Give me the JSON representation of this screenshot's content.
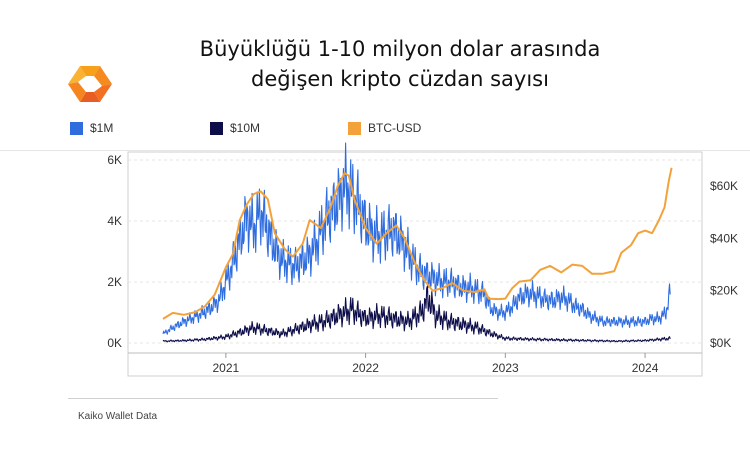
{
  "title": {
    "line1": "Büyüklüğü 1-10 milyon dolar arasında",
    "line2": "değişen kripto cüzdan sayısı"
  },
  "legend": {
    "items": [
      {
        "label": "$1M",
        "color": "#2f6ddf"
      },
      {
        "label": "$10M",
        "color": "#0d0d4a"
      },
      {
        "label": "BTC-USD",
        "color": "#f3a23a"
      }
    ]
  },
  "footer": {
    "source": "Kaiko Wallet Data"
  },
  "chart_data": {
    "type": "line",
    "x_range": [
      2020.5,
      2024.25
    ],
    "y_left": {
      "range": [
        0,
        6000
      ],
      "ticks": [
        0,
        2000,
        4000,
        6000
      ],
      "tick_labels": [
        "0K",
        "2K",
        "4K",
        "6K"
      ]
    },
    "y_right": {
      "range": [
        0,
        70000
      ],
      "ticks": [
        0,
        20000,
        40000,
        60000
      ],
      "tick_labels": [
        "$0K",
        "$20K",
        "$40K",
        "$60K"
      ]
    },
    "x_ticks": [
      2021,
      2022,
      2023,
      2024
    ],
    "x_tick_labels": [
      "2021",
      "2022",
      "2023",
      "2024"
    ],
    "grid": true,
    "series": [
      {
        "name": "$1M",
        "axis": "left",
        "color": "#2f6ddf",
        "points": [
          [
            2020.55,
            300
          ],
          [
            2020.62,
            500
          ],
          [
            2020.7,
            700
          ],
          [
            2020.8,
            900
          ],
          [
            2020.88,
            1100
          ],
          [
            2020.95,
            1400
          ],
          [
            2021.0,
            2000
          ],
          [
            2021.05,
            2600
          ],
          [
            2021.1,
            3400
          ],
          [
            2021.15,
            4100
          ],
          [
            2021.2,
            3800
          ],
          [
            2021.25,
            4300
          ],
          [
            2021.3,
            3700
          ],
          [
            2021.35,
            3100
          ],
          [
            2021.4,
            2700
          ],
          [
            2021.45,
            2600
          ],
          [
            2021.5,
            2500
          ],
          [
            2021.55,
            2700
          ],
          [
            2021.6,
            2900
          ],
          [
            2021.65,
            3300
          ],
          [
            2021.7,
            3900
          ],
          [
            2021.75,
            4300
          ],
          [
            2021.8,
            4600
          ],
          [
            2021.85,
            5200
          ],
          [
            2021.9,
            4900
          ],
          [
            2021.95,
            4500
          ],
          [
            2022.0,
            3900
          ],
          [
            2022.05,
            3600
          ],
          [
            2022.1,
            3500
          ],
          [
            2022.15,
            3600
          ],
          [
            2022.2,
            3700
          ],
          [
            2022.25,
            3400
          ],
          [
            2022.3,
            3000
          ],
          [
            2022.35,
            2600
          ],
          [
            2022.4,
            2300
          ],
          [
            2022.45,
            2200
          ],
          [
            2022.5,
            2100
          ],
          [
            2022.55,
            2000
          ],
          [
            2022.6,
            2000
          ],
          [
            2022.65,
            1900
          ],
          [
            2022.7,
            1800
          ],
          [
            2022.75,
            1800
          ],
          [
            2022.8,
            1700
          ],
          [
            2022.85,
            1600
          ],
          [
            2022.9,
            1100
          ],
          [
            2022.95,
            1000
          ],
          [
            2023.0,
            1000
          ],
          [
            2023.05,
            1200
          ],
          [
            2023.1,
            1500
          ],
          [
            2023.15,
            1600
          ],
          [
            2023.2,
            1600
          ],
          [
            2023.25,
            1500
          ],
          [
            2023.3,
            1400
          ],
          [
            2023.35,
            1400
          ],
          [
            2023.4,
            1500
          ],
          [
            2023.45,
            1400
          ],
          [
            2023.5,
            1200
          ],
          [
            2023.55,
            1100
          ],
          [
            2023.6,
            900
          ],
          [
            2023.65,
            800
          ],
          [
            2023.7,
            700
          ],
          [
            2023.75,
            700
          ],
          [
            2023.8,
            700
          ],
          [
            2023.85,
            700
          ],
          [
            2023.9,
            700
          ],
          [
            2023.95,
            700
          ],
          [
            2024.0,
            700
          ],
          [
            2024.05,
            800
          ],
          [
            2024.1,
            800
          ],
          [
            2024.15,
            1000
          ],
          [
            2024.18,
            1700
          ]
        ]
      },
      {
        "name": "$10M",
        "axis": "left",
        "color": "#0d0d4a",
        "points": [
          [
            2020.55,
            60
          ],
          [
            2020.7,
            80
          ],
          [
            2020.85,
            120
          ],
          [
            2021.0,
            200
          ],
          [
            2021.1,
            350
          ],
          [
            2021.2,
            500
          ],
          [
            2021.3,
            400
          ],
          [
            2021.4,
            300
          ],
          [
            2021.5,
            450
          ],
          [
            2021.6,
            600
          ],
          [
            2021.7,
            700
          ],
          [
            2021.8,
            900
          ],
          [
            2021.9,
            1100
          ],
          [
            2022.0,
            800
          ],
          [
            2022.1,
            900
          ],
          [
            2022.2,
            800
          ],
          [
            2022.3,
            700
          ],
          [
            2022.4,
            1000
          ],
          [
            2022.45,
            1500
          ],
          [
            2022.5,
            900
          ],
          [
            2022.6,
            700
          ],
          [
            2022.7,
            600
          ],
          [
            2022.8,
            500
          ],
          [
            2022.9,
            300
          ],
          [
            2023.0,
            150
          ],
          [
            2023.2,
            120
          ],
          [
            2023.4,
            100
          ],
          [
            2023.6,
            80
          ],
          [
            2023.8,
            60
          ],
          [
            2024.0,
            80
          ],
          [
            2024.18,
            150
          ]
        ]
      },
      {
        "name": "BTC-USD",
        "axis": "right",
        "color": "#f3a23a",
        "points": [
          [
            2020.55,
            9200
          ],
          [
            2020.62,
            11500
          ],
          [
            2020.7,
            10800
          ],
          [
            2020.78,
            11800
          ],
          [
            2020.85,
            14000
          ],
          [
            2020.92,
            18500
          ],
          [
            2021.0,
            29000
          ],
          [
            2021.05,
            34000
          ],
          [
            2021.1,
            47000
          ],
          [
            2021.15,
            53000
          ],
          [
            2021.2,
            57000
          ],
          [
            2021.25,
            58000
          ],
          [
            2021.3,
            55000
          ],
          [
            2021.35,
            42000
          ],
          [
            2021.42,
            36000
          ],
          [
            2021.48,
            33000
          ],
          [
            2021.55,
            38000
          ],
          [
            2021.6,
            47000
          ],
          [
            2021.68,
            44000
          ],
          [
            2021.75,
            52000
          ],
          [
            2021.8,
            60000
          ],
          [
            2021.85,
            65000
          ],
          [
            2021.88,
            64000
          ],
          [
            2021.92,
            55000
          ],
          [
            2022.0,
            44000
          ],
          [
            2022.08,
            38000
          ],
          [
            2022.15,
            42000
          ],
          [
            2022.22,
            45000
          ],
          [
            2022.28,
            40000
          ],
          [
            2022.35,
            31000
          ],
          [
            2022.42,
            24000
          ],
          [
            2022.48,
            20000
          ],
          [
            2022.55,
            21000
          ],
          [
            2022.62,
            23000
          ],
          [
            2022.7,
            20000
          ],
          [
            2022.78,
            19500
          ],
          [
            2022.85,
            20500
          ],
          [
            2022.88,
            17000
          ],
          [
            2022.95,
            16800
          ],
          [
            2023.0,
            17000
          ],
          [
            2023.05,
            21000
          ],
          [
            2023.1,
            23500
          ],
          [
            2023.18,
            24000
          ],
          [
            2023.25,
            28000
          ],
          [
            2023.32,
            29500
          ],
          [
            2023.4,
            27000
          ],
          [
            2023.48,
            30000
          ],
          [
            2023.55,
            29500
          ],
          [
            2023.62,
            26500
          ],
          [
            2023.7,
            26500
          ],
          [
            2023.78,
            27500
          ],
          [
            2023.83,
            34500
          ],
          [
            2023.9,
            37500
          ],
          [
            2023.95,
            42000
          ],
          [
            2024.0,
            43000
          ],
          [
            2024.05,
            42000
          ],
          [
            2024.1,
            47000
          ],
          [
            2024.14,
            52000
          ],
          [
            2024.17,
            62000
          ],
          [
            2024.19,
            67000
          ]
        ]
      }
    ]
  }
}
